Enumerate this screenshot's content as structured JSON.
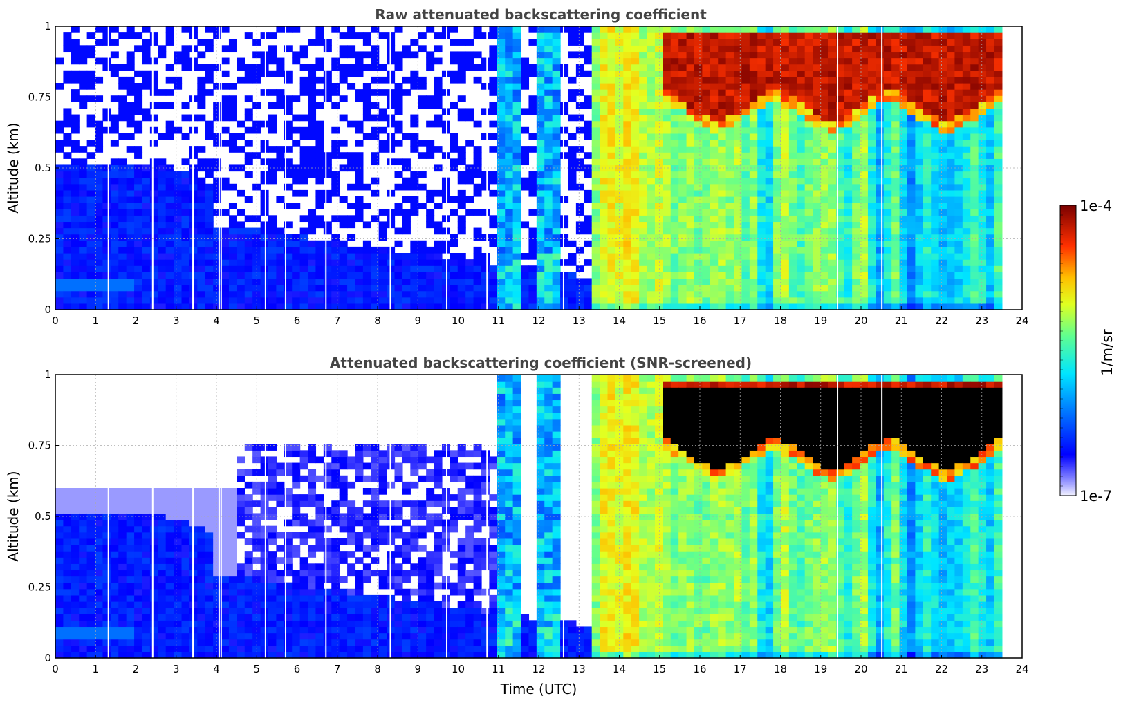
{
  "chart_data": [
    {
      "type": "heatmap",
      "title": "Raw attenuated backscattering coefficient",
      "xlabel": "",
      "ylabel": "Altitude (km)",
      "xlim": [
        0,
        24
      ],
      "ylim": [
        0,
        1
      ],
      "xticks": [
        "0",
        "1",
        "2",
        "3",
        "4",
        "5",
        "6",
        "7",
        "8",
        "9",
        "10",
        "11",
        "12",
        "13",
        "14",
        "15",
        "16",
        "17",
        "18",
        "19",
        "20",
        "21",
        "22",
        "23",
        "24"
      ],
      "yticks": [
        "0",
        "0.25",
        "0.5",
        "0.75",
        "1"
      ],
      "grid": true,
      "data_end_time": 23.5,
      "color_scale": "log",
      "zlim": [
        1e-07,
        0.0001
      ],
      "features": {
        "surface_layer_top_km": 0.55,
        "cloud_onset_utc": 13.2,
        "cloud_layer_km": [
          0.72,
          0.98
        ],
        "screened": false
      }
    },
    {
      "type": "heatmap",
      "title": "Attenuated backscattering coefficient (SNR-screened)",
      "xlabel": "Time (UTC)",
      "ylabel": "Altitude (km)",
      "xlim": [
        0,
        24
      ],
      "ylim": [
        0,
        1
      ],
      "xticks": [
        "0",
        "1",
        "2",
        "3",
        "4",
        "5",
        "6",
        "7",
        "8",
        "9",
        "10",
        "11",
        "12",
        "13",
        "14",
        "15",
        "16",
        "17",
        "18",
        "19",
        "20",
        "21",
        "22",
        "23",
        "24"
      ],
      "yticks": [
        "0",
        "0.25",
        "0.5",
        "0.75",
        "1"
      ],
      "grid": true,
      "data_end_time": 23.5,
      "color_scale": "log",
      "zlim": [
        1e-07,
        0.0001
      ],
      "features": {
        "surface_layer_top_km": 0.55,
        "cloud_onset_utc": 13.2,
        "cloud_layer_km": [
          0.72,
          0.98
        ],
        "screened": true
      }
    }
  ],
  "colorbar": {
    "label": "1/m/sr",
    "max_label": "1e-4",
    "min_label": "1e-7"
  },
  "colors": {
    "title_color": "#444444",
    "colormap": [
      "#e6e6fa",
      "#0000ff",
      "#0080ff",
      "#00ffff",
      "#80ff80",
      "#ffff00",
      "#ff8000",
      "#ff0000",
      "#800000"
    ],
    "saturated_screened": "#000000"
  }
}
